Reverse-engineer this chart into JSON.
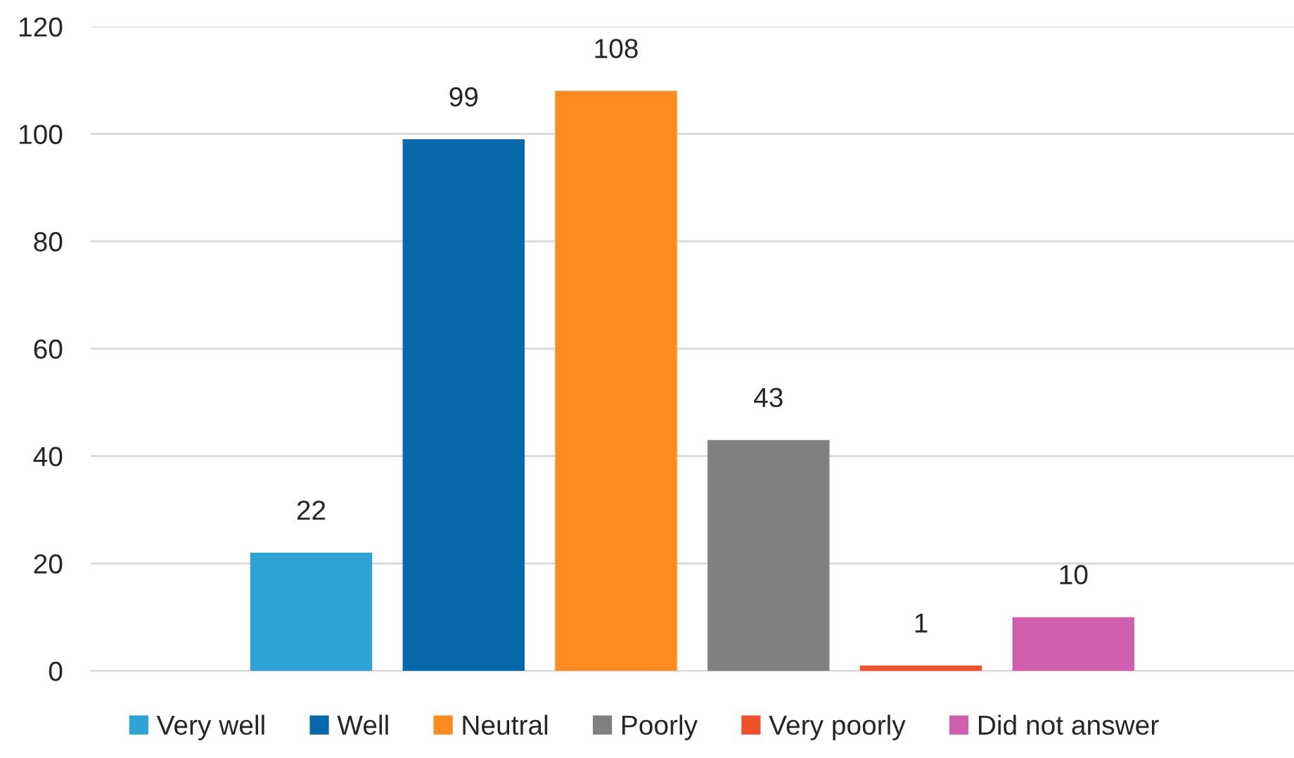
{
  "chart_data": {
    "type": "bar",
    "categories": [
      null
    ],
    "series": [
      {
        "name": "Very well",
        "color": "#2ea3d6",
        "values": [
          22
        ]
      },
      {
        "name": "Well",
        "color": "#0868ac",
        "values": [
          99
        ]
      },
      {
        "name": "Neutral",
        "color": "#fd8b1e",
        "values": [
          108
        ]
      },
      {
        "name": "Poorly",
        "color": "#808080",
        "values": [
          43
        ]
      },
      {
        "name": "Very poorly",
        "color": "#f0502a",
        "values": [
          1
        ]
      },
      {
        "name": "Did not answer",
        "color": "#d05fb0",
        "values": [
          10
        ]
      }
    ],
    "ylim": [
      0,
      120
    ],
    "yticks": [
      0,
      20,
      40,
      60,
      80,
      100,
      120
    ],
    "grid": "y",
    "legend": "bottom",
    "data_labels": true
  }
}
